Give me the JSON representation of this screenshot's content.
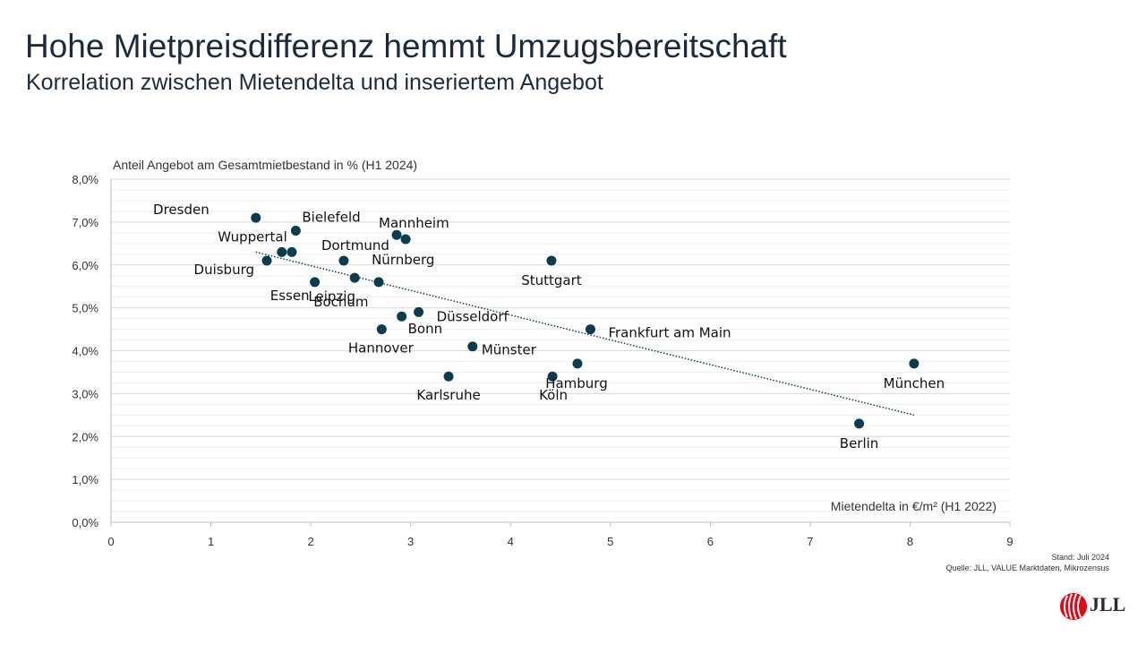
{
  "slide": {
    "title": "Hohe Mietpreisdifferenz hemmt Umzugsbereitschaft",
    "subtitle": "Korrelation zwischen Mietendelta und inseriertem Angebot",
    "stand": "Stand: Juli 2024",
    "source": "Quelle: JLL, VALUE Marktdaten, Mikrozensus",
    "logo_text": "JLL"
  },
  "colors": {
    "point": "#0d3b4f",
    "trend": "#0d3b4f",
    "grid": "#d9d9d9",
    "axis": "#bfbfbf"
  },
  "chart_data": {
    "type": "scatter",
    "ylabel": "Anteil Angebot am Gesamtmietbestand in % (H1 2024)",
    "xlabel": "Mietendelta in €/m² (H1 2022)",
    "xlim": [
      0,
      9
    ],
    "ylim": [
      0,
      8
    ],
    "x_ticks": [
      0,
      1,
      2,
      3,
      4,
      5,
      6,
      7,
      8,
      9
    ],
    "y_ticks": [
      "0,0%",
      "1,0%",
      "2,0%",
      "3,0%",
      "4,0%",
      "5,0%",
      "6,0%",
      "7,0%",
      "8,0%"
    ],
    "grid": "horizontal",
    "points": [
      {
        "label": "Dresden",
        "x": 1.45,
        "y": 7.1
      },
      {
        "label": "Bielefeld",
        "x": 1.85,
        "y": 6.8
      },
      {
        "label": "Wuppertal",
        "x": 1.71,
        "y": 6.3
      },
      {
        "label": "",
        "x": 1.81,
        "y": 6.3
      },
      {
        "label": "Duisburg",
        "x": 1.56,
        "y": 6.1
      },
      {
        "label": "Essen",
        "x": 2.04,
        "y": 5.6
      },
      {
        "label": "Dortmund",
        "x": 2.33,
        "y": 6.1
      },
      {
        "label": "Bochum",
        "x": 2.44,
        "y": 5.7
      },
      {
        "label": "Leipzig",
        "x": 2.68,
        "y": 5.6
      },
      {
        "label": "Mannheim",
        "x": 2.86,
        "y": 6.7
      },
      {
        "label": "Nürnberg",
        "x": 2.95,
        "y": 6.6
      },
      {
        "label": "Hannover",
        "x": 2.71,
        "y": 4.5
      },
      {
        "label": "Bonn",
        "x": 2.91,
        "y": 4.8
      },
      {
        "label": "Düsseldorf",
        "x": 3.08,
        "y": 4.9
      },
      {
        "label": "Karlsruhe",
        "x": 3.38,
        "y": 3.4
      },
      {
        "label": "Münster",
        "x": 3.62,
        "y": 4.1
      },
      {
        "label": "Stuttgart",
        "x": 4.41,
        "y": 6.1
      },
      {
        "label": "Köln",
        "x": 4.42,
        "y": 3.4
      },
      {
        "label": "Hamburg",
        "x": 4.67,
        "y": 3.7
      },
      {
        "label": "Frankfurt am Main",
        "x": 4.8,
        "y": 4.5
      },
      {
        "label": "Berlin",
        "x": 7.49,
        "y": 2.3
      },
      {
        "label": "München",
        "x": 8.04,
        "y": 3.7
      }
    ],
    "trendline": {
      "x": [
        1.45,
        8.04
      ],
      "y": [
        6.3,
        2.5
      ]
    }
  }
}
